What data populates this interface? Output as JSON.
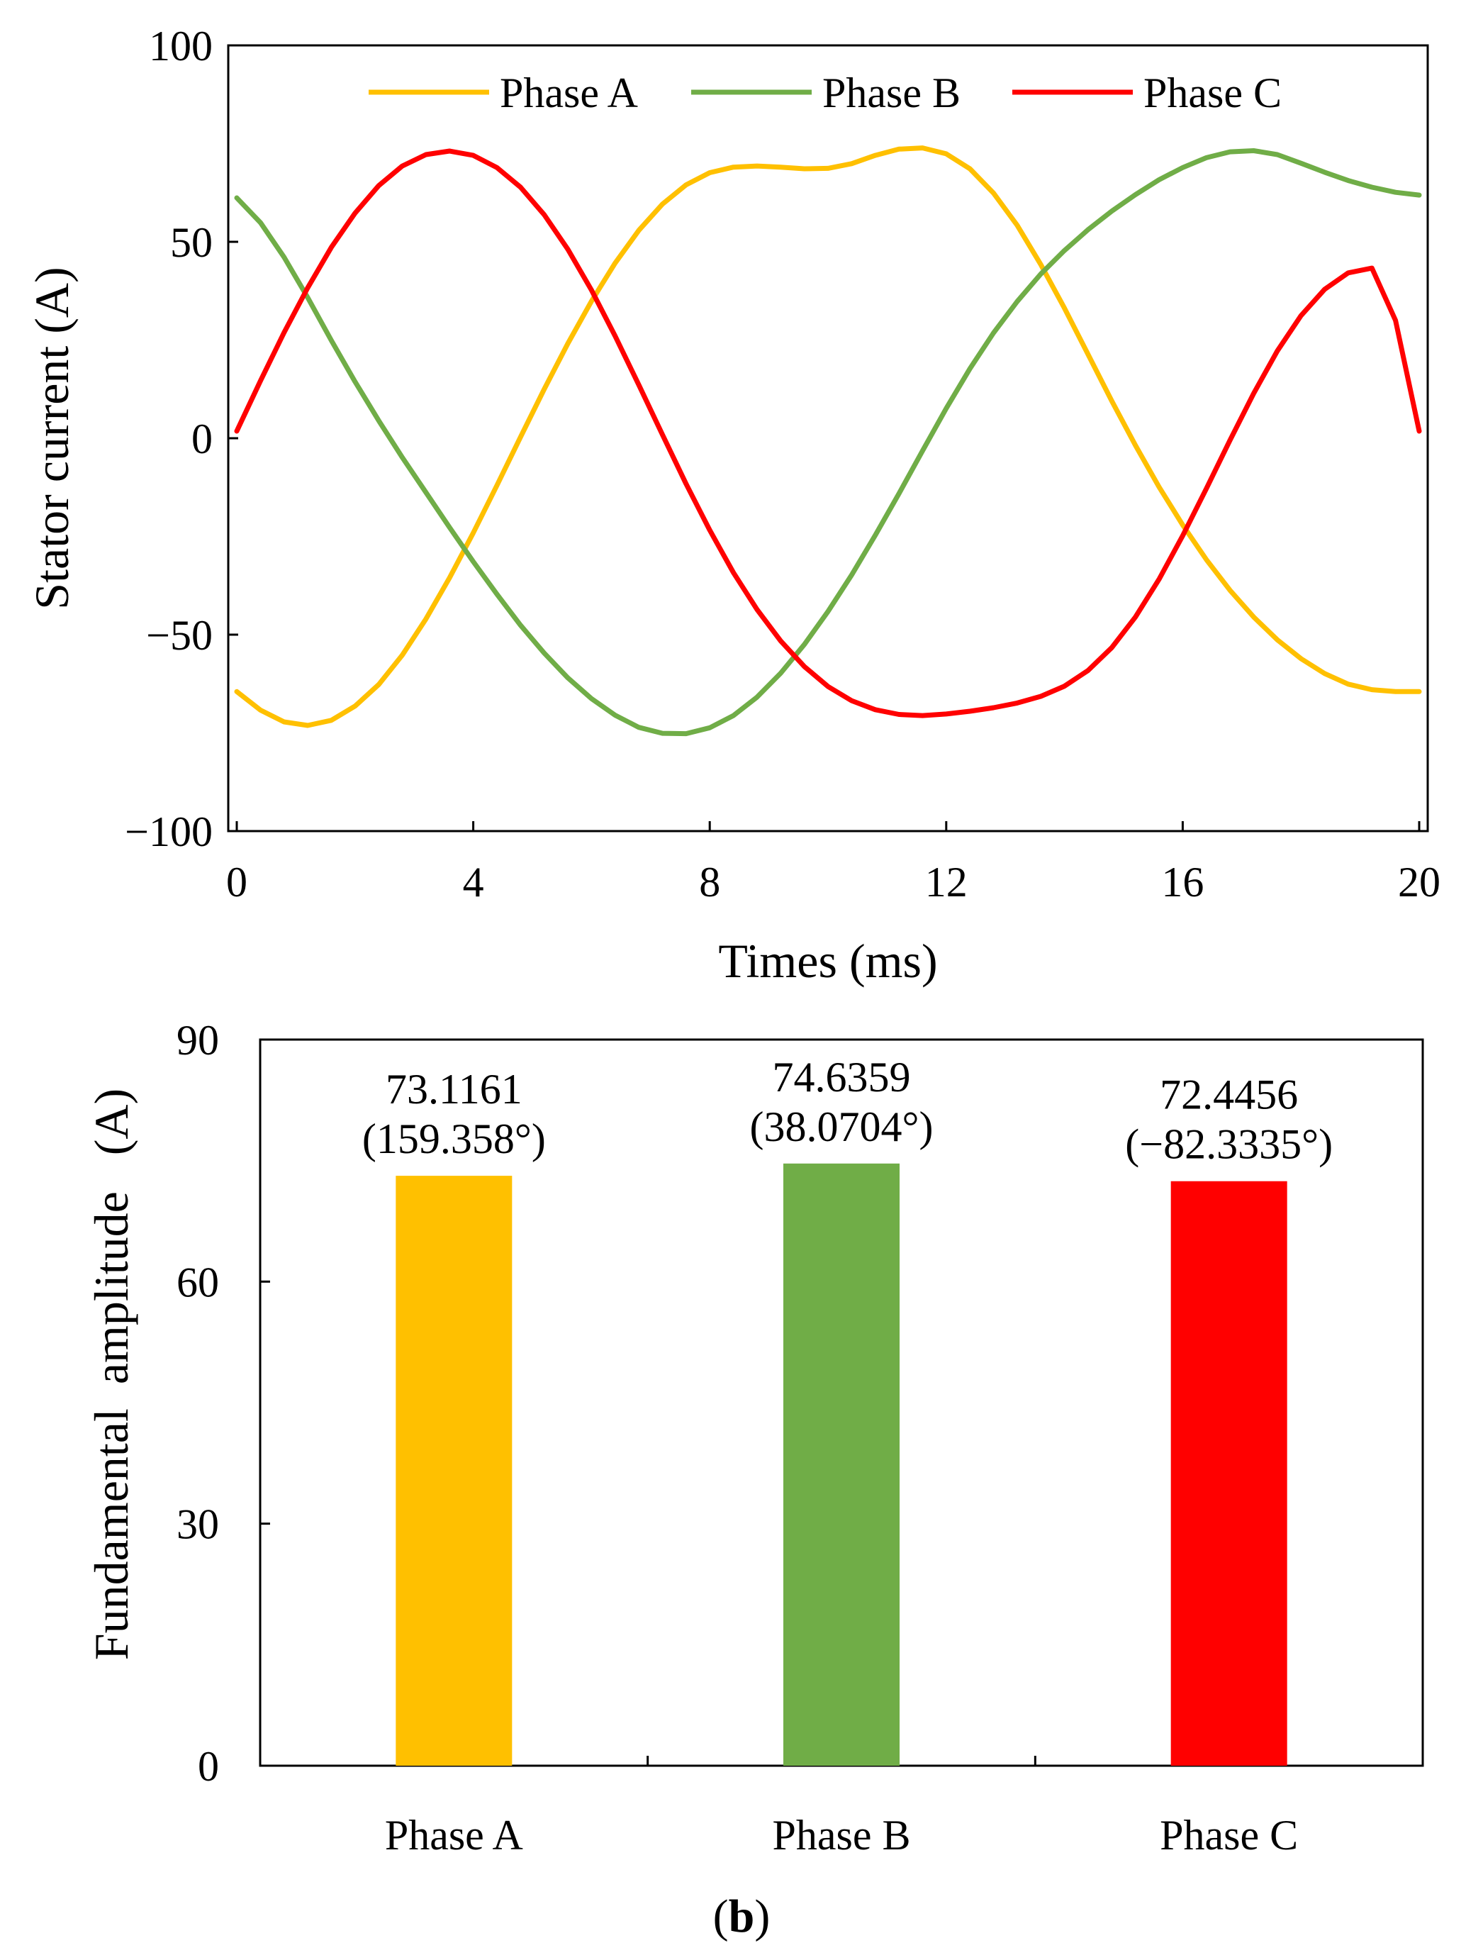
{
  "chart_data": [
    {
      "type": "line",
      "title": "",
      "xlabel": "Times (ms)",
      "ylabel": "Stator current (A)",
      "xlim": [
        0,
        20
      ],
      "ylim": [
        -100,
        100
      ],
      "xticks": [
        0,
        4,
        8,
        12,
        16,
        20
      ],
      "yticks": [
        -100,
        -50,
        0,
        50,
        100
      ],
      "ytick_labels": [
        "−100",
        "−50",
        "0",
        "50",
        "100"
      ],
      "legend_position": "top",
      "grid": false,
      "x": [
        0,
        0.4,
        0.8,
        1.2,
        1.6,
        2.0,
        2.4,
        2.8,
        3.2,
        3.6,
        4.0,
        4.4,
        4.8,
        5.2,
        5.6,
        6.0,
        6.4,
        6.8,
        7.2,
        7.6,
        8.0,
        8.4,
        8.8,
        9.2,
        9.6,
        10.0,
        10.4,
        10.8,
        11.2,
        11.6,
        12.0,
        12.4,
        12.8,
        13.2,
        13.6,
        14.0,
        14.4,
        14.8,
        15.2,
        15.6,
        16.0,
        16.4,
        16.8,
        17.2,
        17.6,
        18.0,
        18.4,
        18.8,
        19.2,
        19.6,
        20.0
      ],
      "series": [
        {
          "name": "Phase A",
          "color": "#FFC000",
          "values": [
            -64.5,
            -69.2,
            -72.2,
            -73.1,
            -71.8,
            -68.2,
            -62.7,
            -55.2,
            -46.0,
            -35.5,
            -24.1,
            -12.0,
            0.3,
            12.5,
            24.1,
            34.9,
            44.6,
            52.9,
            59.6,
            64.5,
            67.6,
            69.0,
            69.3,
            69.0,
            68.6,
            68.7,
            69.9,
            72.0,
            73.6,
            73.9,
            72.4,
            68.6,
            62.4,
            54.2,
            44.2,
            33.1,
            21.3,
            9.5,
            -1.8,
            -12.4,
            -22.1,
            -30.9,
            -38.7,
            -45.5,
            -51.3,
            -56.1,
            -59.9,
            -62.6,
            -64.0,
            -64.5,
            -64.5
          ]
        },
        {
          "name": "Phase B",
          "color": "#70AD47",
          "values": [
            61.2,
            54.9,
            46.1,
            35.8,
            24.9,
            14.4,
            4.5,
            -4.9,
            -13.8,
            -22.7,
            -31.4,
            -39.7,
            -47.6,
            -54.7,
            -61.0,
            -66.3,
            -70.5,
            -73.6,
            -75.1,
            -75.2,
            -73.7,
            -70.6,
            -65.9,
            -59.8,
            -52.5,
            -44.1,
            -34.8,
            -24.7,
            -14.1,
            -3.2,
            7.6,
            17.7,
            26.8,
            34.8,
            41.8,
            47.8,
            53.1,
            57.8,
            62.0,
            65.8,
            68.9,
            71.4,
            72.9,
            73.2,
            72.2,
            70.0,
            67.7,
            65.6,
            63.9,
            62.6,
            61.9
          ]
        },
        {
          "name": "Phase C",
          "color": "#FF0000",
          "values": [
            1.8,
            14.6,
            26.9,
            38.3,
            48.6,
            57.3,
            64.3,
            69.3,
            72.2,
            73.1,
            72.0,
            68.9,
            63.9,
            56.9,
            48.1,
            37.7,
            26.0,
            13.6,
            0.9,
            -11.6,
            -23.4,
            -34.2,
            -43.6,
            -51.6,
            -58.1,
            -63.2,
            -66.8,
            -69.1,
            -70.3,
            -70.6,
            -70.2,
            -69.5,
            -68.6,
            -67.4,
            -65.7,
            -63.1,
            -59.1,
            -53.3,
            -45.5,
            -35.9,
            -24.8,
            -12.8,
            -0.5,
            11.4,
            22.2,
            31.2,
            37.9,
            42.1,
            43.3,
            30.0,
            1.8
          ]
        }
      ]
    },
    {
      "type": "bar",
      "title": "",
      "xlabel": "",
      "ylabel": "Fundamental  amplitude   (A)",
      "ylim": [
        0,
        90
      ],
      "yticks": [
        0,
        30,
        60,
        90
      ],
      "categories": [
        "Phase A",
        "Phase B",
        "Phase C"
      ],
      "values": [
        73.1161,
        74.6359,
        72.4456
      ],
      "colors": [
        "#FFC000",
        "#70AD47",
        "#FF0000"
      ],
      "data_labels": [
        "73.1161",
        "74.6359",
        "72.4456"
      ],
      "phase_labels": [
        "(159.358°)",
        "(38.0704°)",
        "(−82.3335°)"
      ],
      "grid": false
    }
  ],
  "panel_label": {
    "open": "(",
    "letter": "b",
    "close": ")"
  }
}
